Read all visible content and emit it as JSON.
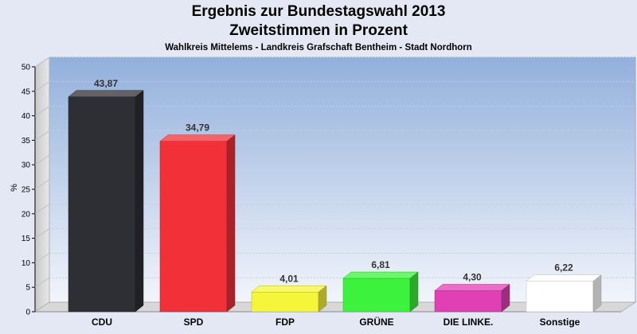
{
  "chart_data": {
    "type": "bar",
    "title": "Ergebnis zur Bundestagswahl 2013",
    "subtitle_main": "Zweitstimmen in Prozent",
    "subtitle": "Wahlkreis Mittelems - Landkreis Grafschaft Bentheim - Stadt Nordhorn",
    "ylabel": "%",
    "xlabel": "",
    "ylim": [
      0,
      50
    ],
    "yticks": [
      "0",
      "5",
      "10",
      "15",
      "20",
      "25",
      "30",
      "35",
      "40",
      "45",
      "50"
    ],
    "categories": [
      "CDU",
      "SPD",
      "FDP",
      "GRÜNE",
      "DIE LINKE.",
      "Sonstige"
    ],
    "values": [
      43.87,
      34.79,
      4.01,
      6.81,
      4.3,
      6.22
    ],
    "value_labels": [
      "43,87",
      "34,79",
      "4,01",
      "6,81",
      "4,30",
      "6,22"
    ],
    "colors": [
      "#2e2e35",
      "#f23038",
      "#f5f53c",
      "#3cf23c",
      "#e040b4",
      "#ffffff"
    ],
    "grid": true,
    "legend": "none"
  }
}
